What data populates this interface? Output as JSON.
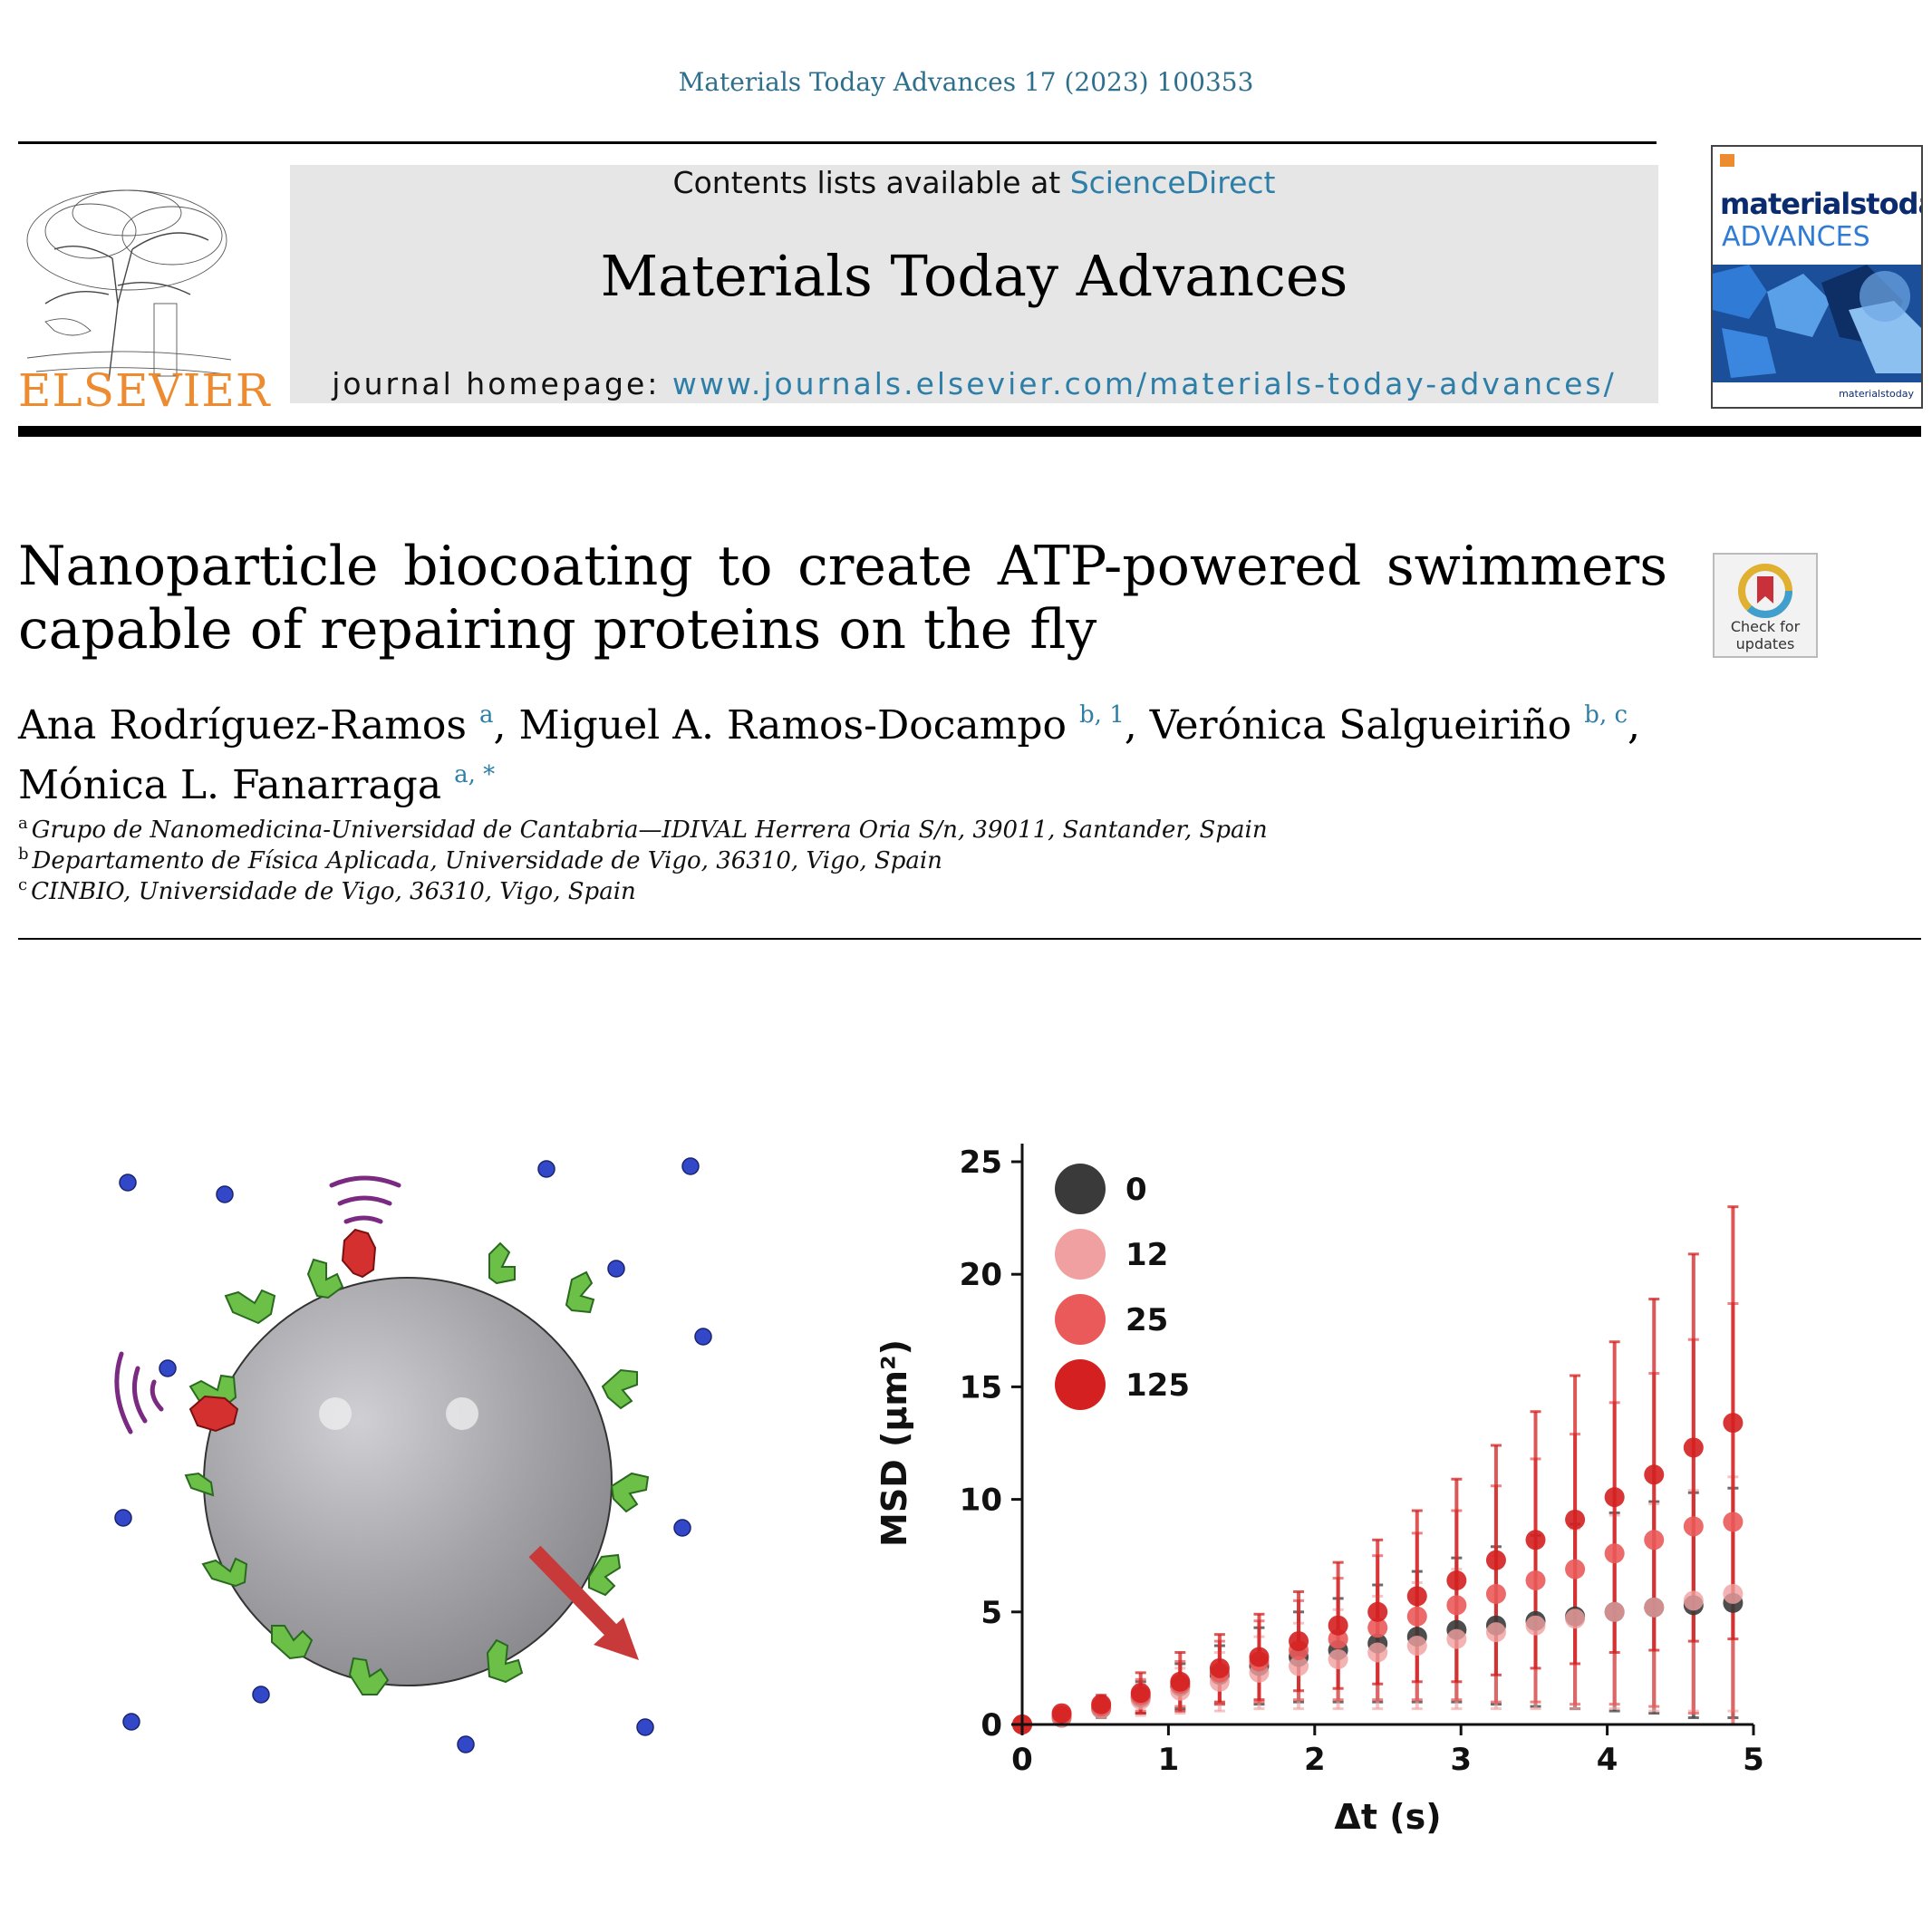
{
  "header": {
    "journal_ref": "Materials Today Advances 17 (2023) 100353",
    "contents_prefix": "Contents lists available at ",
    "contents_link": "ScienceDirect",
    "journal_name": "Materials Today Advances",
    "homepage_prefix": "journal homepage: ",
    "homepage_url": "www.journals.elsevier.com/materials-today-advances/",
    "publisher": "ELSEVIER",
    "cover_title_1": "materialstoday",
    "cover_title_2": "ADVANCES",
    "cover_footer": "materialstoday",
    "check_updates_1": "Check for",
    "check_updates_2": "updates"
  },
  "article": {
    "title": "Nanoparticle biocoating to create ATP-powered swimmers capable of repairing proteins on the fly",
    "authors": [
      {
        "name": "Ana Rodríguez-Ramos",
        "sup": "a",
        "sep": ", "
      },
      {
        "name": "Miguel A. Ramos-Docampo",
        "sup": "b, 1",
        "sep": ", "
      },
      {
        "name": "Verónica Salgueiriño",
        "sup": "b, c",
        "sep": ","
      },
      {
        "name": "Mónica L. Fanarraga",
        "sup": "a, *",
        "sep": ""
      }
    ],
    "affiliations": [
      {
        "key": "a",
        "text": "Grupo de Nanomedicina-Universidad de Cantabria—IDIVAL Herrera Oria S/n, 39011, Santander, Spain"
      },
      {
        "key": "b",
        "text": "Departamento de Física Aplicada, Universidade de Vigo, 36310, Vigo, Spain"
      },
      {
        "key": "c",
        "text": "CINBIO, Universidade de Vigo, 36310, Vigo, Spain"
      }
    ]
  },
  "colors": {
    "link": "#2e7fa8",
    "elsevier_orange": "#ec8b2f",
    "series_0": "#3a3a3a",
    "series_12": "#f0a0a0",
    "series_25": "#ea5a5a",
    "series_125": "#d42020"
  },
  "chart_data": {
    "type": "scatter",
    "title": "",
    "xlabel": "Δt (s)",
    "ylabel": "MSD (μm²)",
    "xlim": [
      0,
      5
    ],
    "ylim": [
      0,
      25
    ],
    "xticks": [
      "0",
      "1",
      "2",
      "3",
      "4",
      "5"
    ],
    "yticks": [
      "0",
      "5",
      "10",
      "15",
      "20",
      "25"
    ],
    "legend_position": "top-left",
    "x": [
      0,
      0.27,
      0.54,
      0.81,
      1.08,
      1.35,
      1.62,
      1.89,
      2.16,
      2.43,
      2.7,
      2.97,
      3.24,
      3.51,
      3.78,
      4.05,
      4.32,
      4.59,
      4.86
    ],
    "series": [
      {
        "name": "0",
        "color": "#3a3a3a",
        "values": [
          0,
          0.3,
          0.7,
          1.2,
          1.7,
          2.2,
          2.6,
          3.0,
          3.3,
          3.6,
          3.9,
          4.2,
          4.4,
          4.6,
          4.8,
          5.0,
          5.2,
          5.3,
          5.4
        ],
        "errors": [
          0,
          0.2,
          0.4,
          0.7,
          1.0,
          1.3,
          1.7,
          2.0,
          2.3,
          2.6,
          2.9,
          3.2,
          3.5,
          3.8,
          4.1,
          4.4,
          4.7,
          5.0,
          5.1
        ]
      },
      {
        "name": "12",
        "color": "#f0a0a0",
        "values": [
          0,
          0.3,
          0.7,
          1.1,
          1.5,
          1.9,
          2.3,
          2.6,
          2.9,
          3.2,
          3.5,
          3.8,
          4.1,
          4.4,
          4.7,
          5.0,
          5.2,
          5.5,
          5.8
        ],
        "errors": [
          0,
          0.2,
          0.4,
          0.7,
          1.0,
          1.3,
          1.6,
          1.9,
          2.2,
          2.5,
          2.8,
          3.1,
          3.4,
          3.7,
          4.0,
          4.3,
          4.6,
          4.9,
          5.2
        ]
      },
      {
        "name": "25",
        "color": "#ea5a5a",
        "values": [
          0,
          0.4,
          0.8,
          1.3,
          1.8,
          2.3,
          2.8,
          3.3,
          3.8,
          4.3,
          4.8,
          5.3,
          5.8,
          6.4,
          6.9,
          7.6,
          8.2,
          8.8,
          9.0
        ],
        "errors": [
          0,
          0.2,
          0.4,
          0.7,
          1.0,
          1.4,
          1.8,
          2.2,
          2.7,
          3.2,
          3.7,
          4.2,
          4.8,
          5.4,
          6.0,
          6.7,
          7.4,
          8.3,
          9.7
        ]
      },
      {
        "name": "125",
        "color": "#d42020",
        "values": [
          0,
          0.5,
          0.9,
          1.4,
          1.9,
          2.5,
          3.0,
          3.7,
          4.4,
          5.0,
          5.7,
          6.4,
          7.3,
          8.2,
          9.1,
          10.1,
          11.1,
          12.3,
          13.4
        ],
        "errors": [
          0,
          0.2,
          0.4,
          0.9,
          1.3,
          1.5,
          1.9,
          2.2,
          2.8,
          3.2,
          3.8,
          4.5,
          5.1,
          5.7,
          6.4,
          6.9,
          7.8,
          8.6,
          9.6
        ]
      }
    ]
  }
}
